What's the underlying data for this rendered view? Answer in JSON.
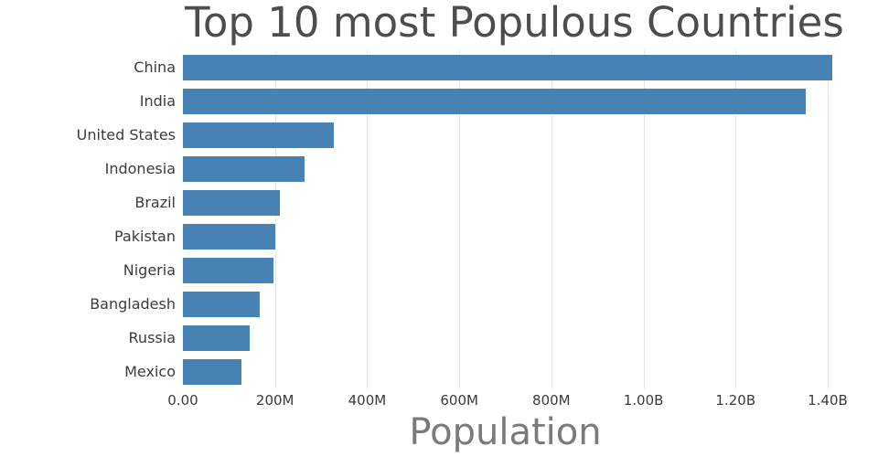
{
  "chart_data": {
    "type": "bar",
    "orientation": "horizontal",
    "title": "Top 10 most Populous Countries",
    "xlabel": "Population",
    "ylabel": "",
    "categories": [
      "China",
      "India",
      "United States",
      "Indonesia",
      "Brazil",
      "Pakistan",
      "Nigeria",
      "Bangladesh",
      "Russia",
      "Mexico"
    ],
    "values": [
      1410000000,
      1353000000,
      328000000,
      264000000,
      210000000,
      200000000,
      196000000,
      166000000,
      144000000,
      128000000
    ],
    "xlim": [
      0,
      1400000000
    ],
    "x_ticks": [
      {
        "value": 0,
        "label": "0.00"
      },
      {
        "value": 200000000,
        "label": "200M"
      },
      {
        "value": 400000000,
        "label": "400M"
      },
      {
        "value": 600000000,
        "label": "600M"
      },
      {
        "value": 800000000,
        "label": "800M"
      },
      {
        "value": 1000000000,
        "label": "1.00B"
      },
      {
        "value": 1200000000,
        "label": "1.20B"
      },
      {
        "value": 1400000000,
        "label": "1.40B"
      }
    ],
    "grid": true,
    "legend": "none",
    "bar_color": "#4682b4",
    "title_color": "#4d4d4d",
    "axis_label_color": "#7a7a7a"
  }
}
